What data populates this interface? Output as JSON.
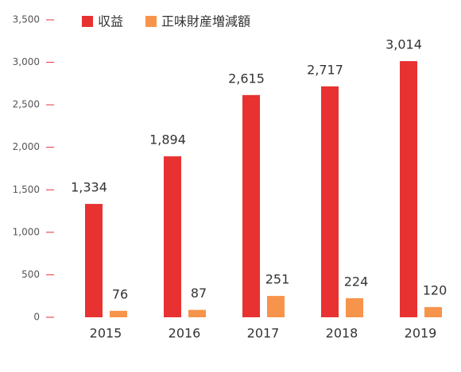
{
  "chart_data": {
    "type": "bar",
    "categories": [
      "2015",
      "2016",
      "2017",
      "2018",
      "2019"
    ],
    "series": [
      {
        "name": "収益",
        "color": "#e83131",
        "values": [
          1334,
          1894,
          2615,
          2717,
          3014
        ],
        "value_labels": [
          "1,334",
          "1,894",
          "2,615",
          "2,717",
          "3,014"
        ]
      },
      {
        "name": "正味財産増減額",
        "color": "#f7944b",
        "values": [
          76,
          87,
          251,
          224,
          120
        ]
      }
    ],
    "ylim": [
      0,
      3500
    ],
    "yticks": [
      0,
      {
        "value": 500,
        "label": "500"
      },
      {
        "value": 1000,
        "label": "1,000"
      },
      {
        "value": 1500,
        "label": "1,500"
      },
      {
        "value": 2000,
        "label": "2,000"
      },
      {
        "value": 2500,
        "label": "2,500"
      },
      {
        "value": 3000,
        "label": "3,000"
      },
      {
        "value": 3500,
        "label": "3,500"
      }
    ],
    "grid": false
  }
}
